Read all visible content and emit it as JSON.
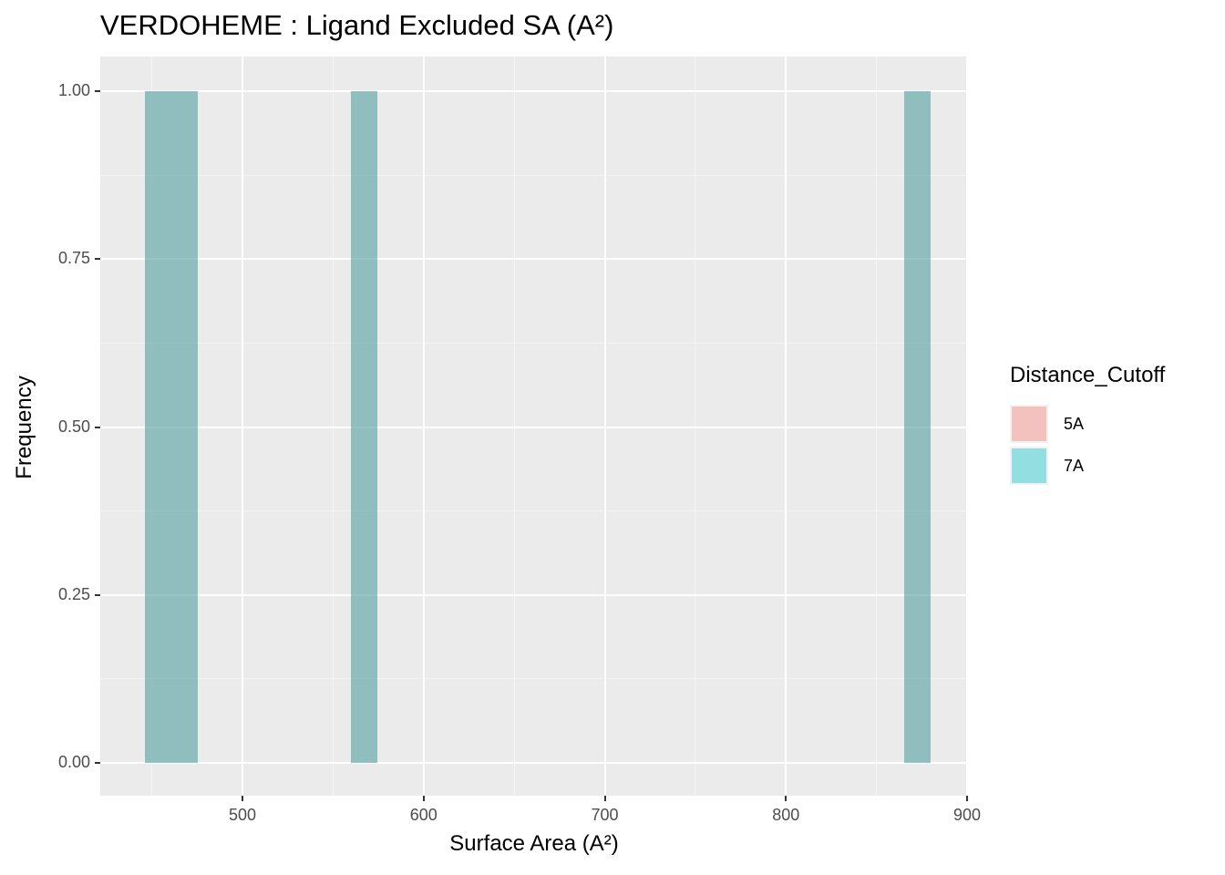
{
  "chart_data": {
    "type": "bar",
    "subtype": "histogram",
    "title": "VERDOHEME : Ligand Excluded SA (A²)",
    "xlabel": "Surface Area (A²)",
    "ylabel": "Frequency",
    "xlim": [
      422,
      900
    ],
    "ylim": [
      -0.05,
      1.05
    ],
    "x_ticks": [
      500,
      600,
      700,
      800,
      900
    ],
    "x_tick_labels": [
      "500",
      "600",
      "700",
      "800",
      "900"
    ],
    "y_ticks": [
      0,
      0.25,
      0.5,
      0.75,
      1.0
    ],
    "y_tick_labels": [
      "0.00",
      "0.25",
      "0.50",
      "0.75",
      "1.00"
    ],
    "grid": true,
    "bin_width": 14.6,
    "legend": {
      "title": "Distance_Cutoff",
      "position": "right",
      "entries": [
        {
          "label": "5A",
          "color": "#F8766D",
          "swatch": "#F4C2BE"
        },
        {
          "label": "7A",
          "color": "#00BFC4",
          "swatch": "#93DEE0"
        }
      ]
    },
    "overlap_color": "#93BDBB",
    "bins": [
      {
        "xmin": 446.0,
        "xmax": 460.6
      },
      {
        "xmin": 460.6,
        "xmax": 475.2
      },
      {
        "xmin": 559.9,
        "xmax": 574.5
      },
      {
        "xmin": 865.3,
        "xmax": 879.9
      }
    ],
    "categories": [
      "453.3",
      "467.9",
      "567.2",
      "872.6"
    ],
    "series": [
      {
        "name": "5A",
        "values": [
          1,
          1,
          1,
          1
        ]
      },
      {
        "name": "7A",
        "values": [
          1,
          1,
          1,
          1
        ]
      }
    ]
  }
}
